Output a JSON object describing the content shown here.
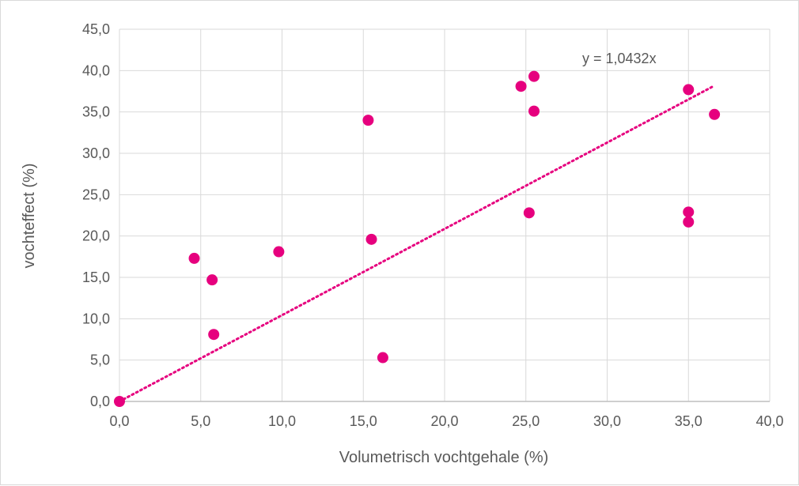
{
  "chart_data": {
    "type": "scatter",
    "xlabel": "Volumetrisch vochtgehale (%)",
    "ylabel": "vochteffect (%)",
    "xlim": [
      0,
      40
    ],
    "ylim": [
      0,
      45
    ],
    "x_ticks": [
      "0,0",
      "5,0",
      "10,0",
      "15,0",
      "20,0",
      "25,0",
      "30,0",
      "35,0",
      "40,0"
    ],
    "y_ticks": [
      "0,0",
      "5,0",
      "10,0",
      "15,0",
      "20,0",
      "25,0",
      "30,0",
      "35,0",
      "40,0",
      "45,0"
    ],
    "x_tick_values": [
      0,
      5,
      10,
      15,
      20,
      25,
      30,
      35,
      40
    ],
    "y_tick_values": [
      0,
      5,
      10,
      15,
      20,
      25,
      30,
      35,
      40,
      45
    ],
    "grid": true,
    "marker_color": "#e6007e",
    "trendline": {
      "equation": "y = 1,0432x",
      "slope": 1.0432,
      "x_range": [
        0,
        36.5
      ],
      "style": "dotted",
      "color": "#e6007e"
    },
    "points": [
      {
        "x": 0.0,
        "y": 0.0
      },
      {
        "x": 4.6,
        "y": 17.3
      },
      {
        "x": 5.7,
        "y": 14.7
      },
      {
        "x": 5.8,
        "y": 8.1
      },
      {
        "x": 9.8,
        "y": 18.1
      },
      {
        "x": 15.3,
        "y": 34.0
      },
      {
        "x": 15.5,
        "y": 19.6
      },
      {
        "x": 16.2,
        "y": 5.3
      },
      {
        "x": 24.7,
        "y": 38.1
      },
      {
        "x": 25.2,
        "y": 22.8
      },
      {
        "x": 25.5,
        "y": 39.3
      },
      {
        "x": 25.5,
        "y": 35.1
      },
      {
        "x": 35.0,
        "y": 37.7
      },
      {
        "x": 35.0,
        "y": 22.9
      },
      {
        "x": 35.0,
        "y": 21.7
      },
      {
        "x": 36.6,
        "y": 34.7
      }
    ]
  }
}
